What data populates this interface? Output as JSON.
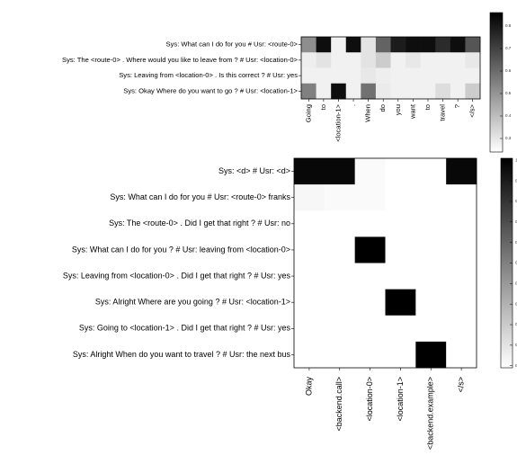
{
  "chart_data": [
    {
      "type": "heatmap",
      "title": "",
      "rows": [
        "Sys: What can I do for you # Usr: <route-0>",
        "Sys: The <route-0> . Where would you like to leave from ? # Usr: <location-0>",
        "Sys: Leaving from <location-0> . Is this correct ? # Usr: yes",
        "Sys: Okay Where do you want to go ? # Usr: <location-1>"
      ],
      "columns": [
        "Going",
        "to",
        "<location-1>",
        ".",
        "When",
        "do",
        "you",
        "want",
        "to",
        "travel",
        "?",
        "</s>"
      ],
      "values": [
        [
          0.4,
          0.85,
          0.05,
          0.85,
          0.1,
          0.55,
          0.8,
          0.85,
          0.85,
          0.75,
          0.85,
          0.6
        ],
        [
          0.06,
          0.1,
          0.05,
          0.05,
          0.1,
          0.18,
          0.05,
          0.08,
          0.05,
          0.05,
          0.05,
          0.08
        ],
        [
          0.05,
          0.05,
          0.05,
          0.05,
          0.08,
          0.06,
          0.05,
          0.05,
          0.05,
          0.05,
          0.05,
          0.05
        ],
        [
          0.45,
          0.05,
          0.85,
          0.05,
          0.5,
          0.07,
          0.05,
          0.05,
          0.05,
          0.12,
          0.05,
          0.18
        ]
      ],
      "colorbar": {
        "min": 0.0,
        "max": 0.9,
        "ticks": [
          "0.3",
          "0.4",
          "0.5",
          "0.6",
          "0.7",
          "0.8"
        ]
      }
    },
    {
      "type": "heatmap",
      "title": "",
      "rows": [
        "Sys: <d> # Usr: <d>",
        "Sys: What can I do for you # Usr: <route-0> franks",
        "Sys: The <route-0> . Did I get that right ? # Usr: no",
        "Sys: What can I do for you ? # Usr: leaving from <location-0>",
        "Sys: Leaving from <location-0> . Did I get that right ? # Usr: yes",
        "Sys: Alright Where are you going ? # Usr: <location-1>",
        "Sys: Going to <location-1> . Did I get that right ? # Usr: yes",
        "Sys: Alright When do you want to travel ? # Usr: the next bus"
      ],
      "columns": [
        "Okay",
        "<backend.call>",
        "<location-0>",
        "<location-1>",
        "<backend.example>",
        "</s>"
      ],
      "values": [
        [
          0.97,
          0.97,
          0.02,
          0.0,
          0.0,
          0.97
        ],
        [
          0.03,
          0.02,
          0.02,
          0.0,
          0.0,
          0.0
        ],
        [
          0.0,
          0.0,
          0.0,
          0.0,
          0.0,
          0.0
        ],
        [
          0.0,
          0.0,
          1.0,
          0.0,
          0.0,
          0.0
        ],
        [
          0.0,
          0.0,
          0.0,
          0.0,
          0.0,
          0.0
        ],
        [
          0.0,
          0.0,
          0.0,
          1.0,
          0.0,
          0.0
        ],
        [
          0.0,
          0.0,
          0.0,
          0.0,
          0.0,
          0.0
        ],
        [
          0.0,
          0.0,
          0.0,
          0.0,
          1.0,
          0.0
        ]
      ],
      "colorbar": {
        "min": 0.0,
        "max": 1.0,
        "ticks": [
          "0",
          "0",
          "0",
          "0",
          "0",
          "0",
          "0",
          "0",
          "0",
          "0",
          "1"
        ]
      }
    }
  ]
}
